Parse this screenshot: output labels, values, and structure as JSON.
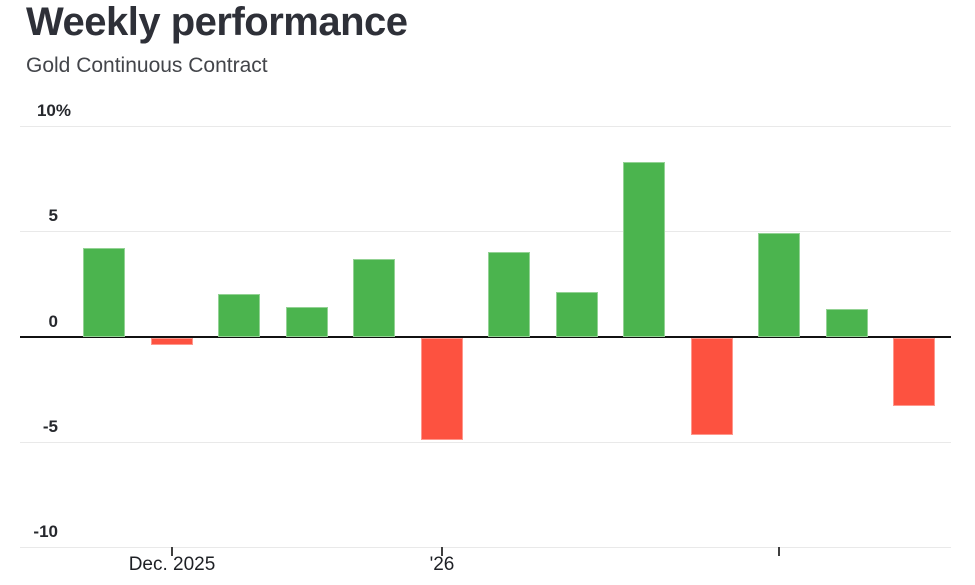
{
  "header": {
    "title": "Weekly performance",
    "subtitle": "Gold Continuous Contract"
  },
  "chart_data": {
    "type": "bar",
    "title": "Weekly performance",
    "subtitle": "Gold Continuous Contract",
    "unit": "%",
    "values": [
      4.2,
      -0.4,
      2.0,
      1.4,
      3.7,
      -4.9,
      4.0,
      2.1,
      8.3,
      -4.7,
      4.9,
      1.3,
      -3.3
    ],
    "series_note": "13 consecutive weekly % changes, green = positive week, red = negative week",
    "y_ticks": [
      {
        "value": 10,
        "label": "10%"
      },
      {
        "value": 5,
        "label": "5"
      },
      {
        "value": 0,
        "label": "0"
      },
      {
        "value": -5,
        "label": "-5"
      },
      {
        "value": -10,
        "label": "-10"
      }
    ],
    "ylim": [
      -10,
      10
    ],
    "x_ticks": [
      {
        "bar_index": 1,
        "label": "Dec. 2025"
      },
      {
        "bar_index": 5,
        "label": "'26"
      },
      {
        "bar_index": 10,
        "label": ""
      }
    ],
    "grid": "horizontal",
    "legend": "none",
    "colors": {
      "positive": "#4bb44e",
      "negative": "#fd5240",
      "grid": "#e9e9e9",
      "zero_line": "#111111",
      "tick": "#3f3f3f",
      "title": "#2e3038",
      "subtitle": "#43454a",
      "axis_label": "#26282d",
      "x_label": "#1e2025",
      "background": "#ffffff"
    }
  }
}
